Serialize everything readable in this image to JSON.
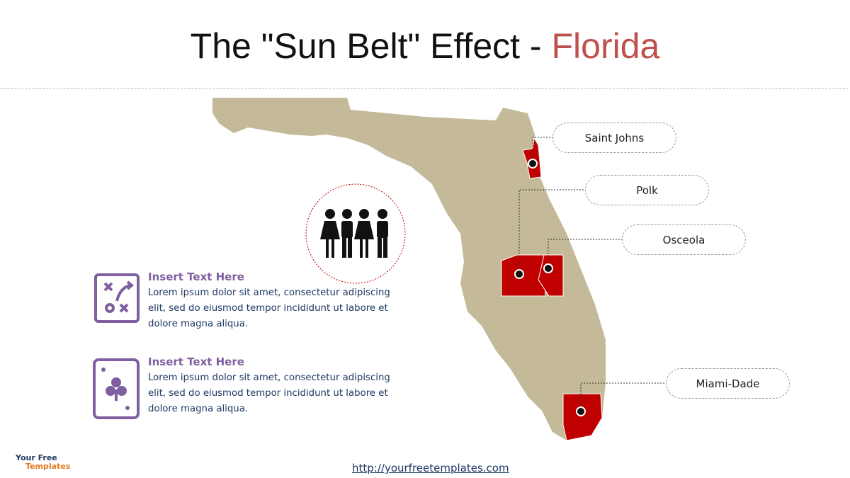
{
  "header": {
    "title": "The \"Sun Belt\" Effect - ",
    "title_highlight": "Florida"
  },
  "counties": [
    {
      "label": "Saint Johns"
    },
    {
      "label": "Polk"
    },
    {
      "label": "Osceola"
    },
    {
      "label": "Miami-Dade"
    }
  ],
  "items": [
    {
      "heading": "Insert Text Here",
      "body": "Lorem ipsum dolor sit amet, consectetur adipiscing elit, sed do eiusmod tempor incididunt ut labore et dolore magna aliqua."
    },
    {
      "heading": "Insert Text Here",
      "body": "Lorem ipsum dolor sit amet, consectetur adipiscing elit, sed do eiusmod tempor incididunt ut labore et dolore magna aliqua."
    }
  ],
  "footer": {
    "url": "http://yourfreetemplates.com",
    "logo_top": "Your Free",
    "logo_bottom": "Templates"
  }
}
